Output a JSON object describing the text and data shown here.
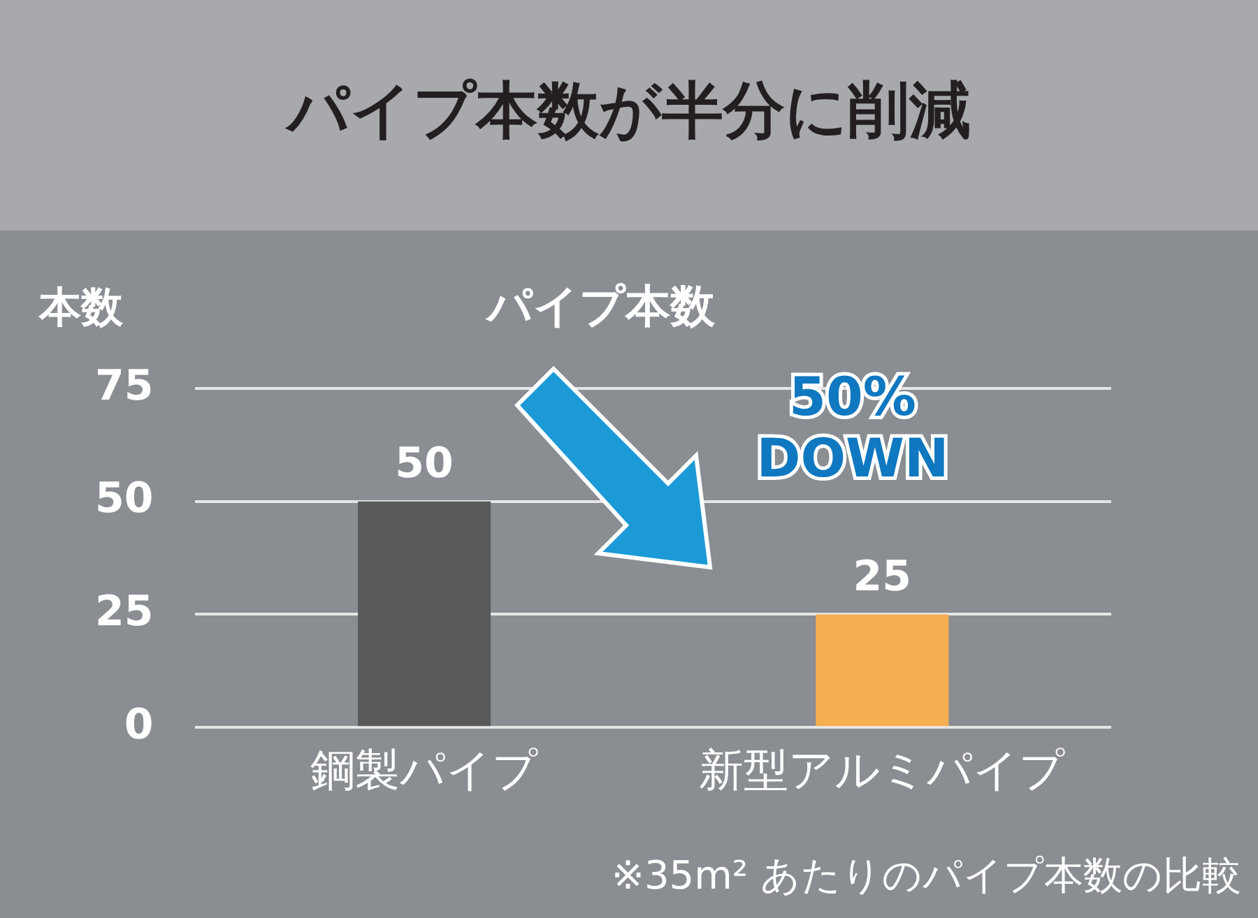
{
  "chart_data": {
    "type": "bar",
    "title": "パイプ本数が半分に削減",
    "subtitle": "パイプ本数",
    "ylabel": "本数",
    "categories": [
      "鋼製パイプ",
      "新型アルミパイプ"
    ],
    "values": [
      50,
      25
    ],
    "colors": [
      "#58595b",
      "#f6b052"
    ],
    "ylim": [
      0,
      75
    ],
    "yticks": [
      0,
      25,
      50,
      75
    ],
    "grid": "y",
    "legend": false,
    "data_labels": true,
    "annotations": [
      "50%\nDOWN",
      "※35m² あたりのパイプ本数の比較"
    ]
  }
}
